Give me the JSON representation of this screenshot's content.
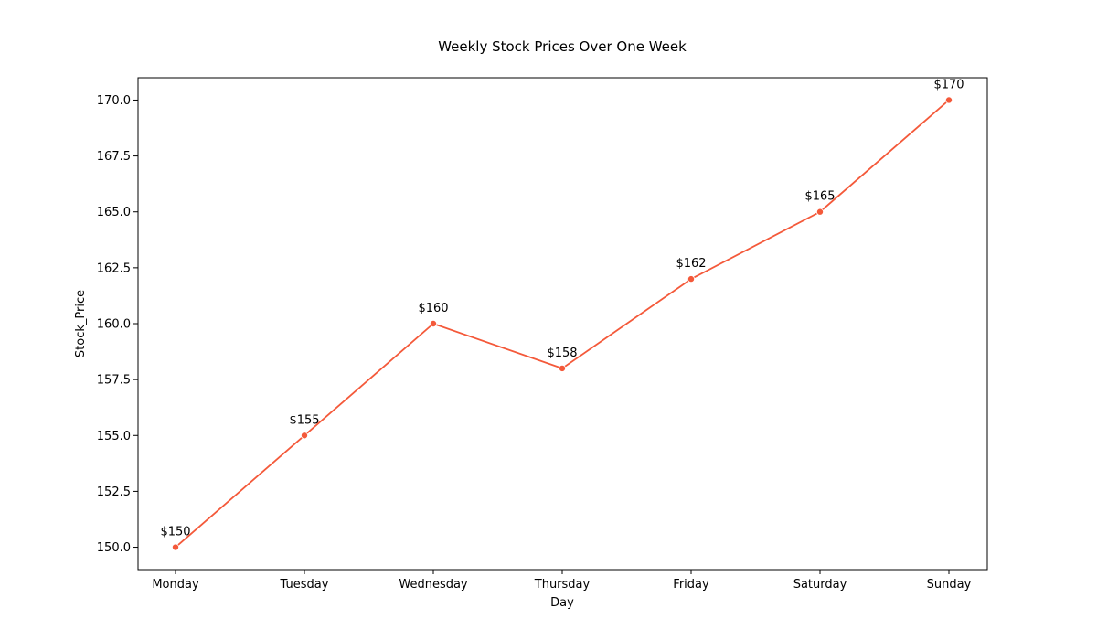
{
  "chart_data": {
    "type": "line",
    "title": "Weekly Stock Prices Over One Week",
    "xlabel": "Day",
    "ylabel": "Stock_Price",
    "categories": [
      "Monday",
      "Tuesday",
      "Wednesday",
      "Thursday",
      "Friday",
      "Saturday",
      "Sunday"
    ],
    "series": [
      {
        "values": [
          150,
          155,
          160,
          158,
          162,
          165,
          170
        ],
        "data_labels": [
          "$150",
          "$155",
          "$160",
          "$158",
          "$162",
          "$165",
          "$170"
        ],
        "color": "#f4593a"
      }
    ],
    "ylim": [
      149.0,
      171.0
    ],
    "yticks": [
      150.0,
      152.5,
      155.0,
      157.5,
      160.0,
      162.5,
      165.0,
      167.5,
      170.0
    ],
    "ytick_labels": [
      "150.0",
      "152.5",
      "155.0",
      "157.5",
      "160.0",
      "162.5",
      "165.0",
      "167.5",
      "170.0"
    ],
    "grid": false,
    "legend": "none",
    "marker": "circle"
  }
}
